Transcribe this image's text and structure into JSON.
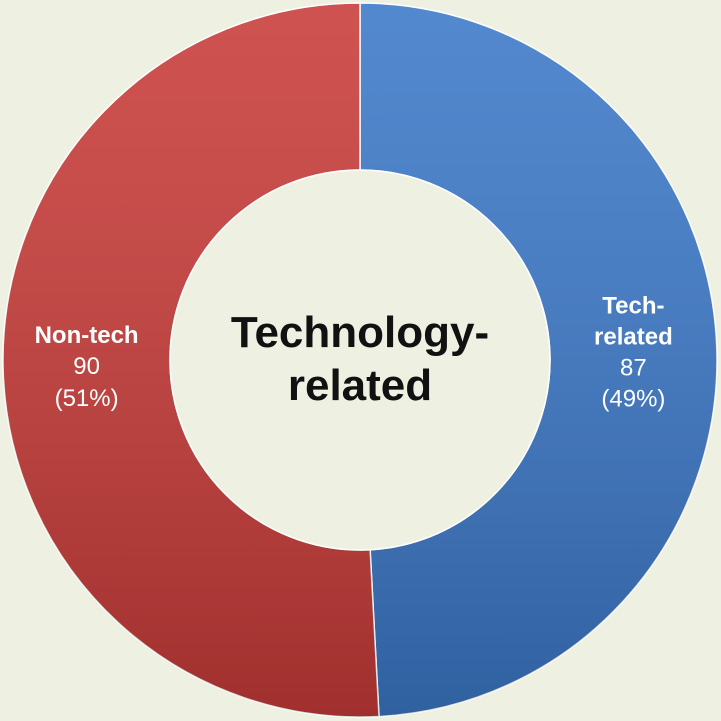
{
  "chart_data": {
    "type": "donut",
    "title": "Technology-related",
    "categories": [
      "Tech-related",
      "Non-tech"
    ],
    "values": [
      87,
      90
    ],
    "percent_labels": [
      "(49%)",
      "(51%)"
    ],
    "colors": [
      "#3b78c8",
      "#c83b38"
    ]
  }
}
